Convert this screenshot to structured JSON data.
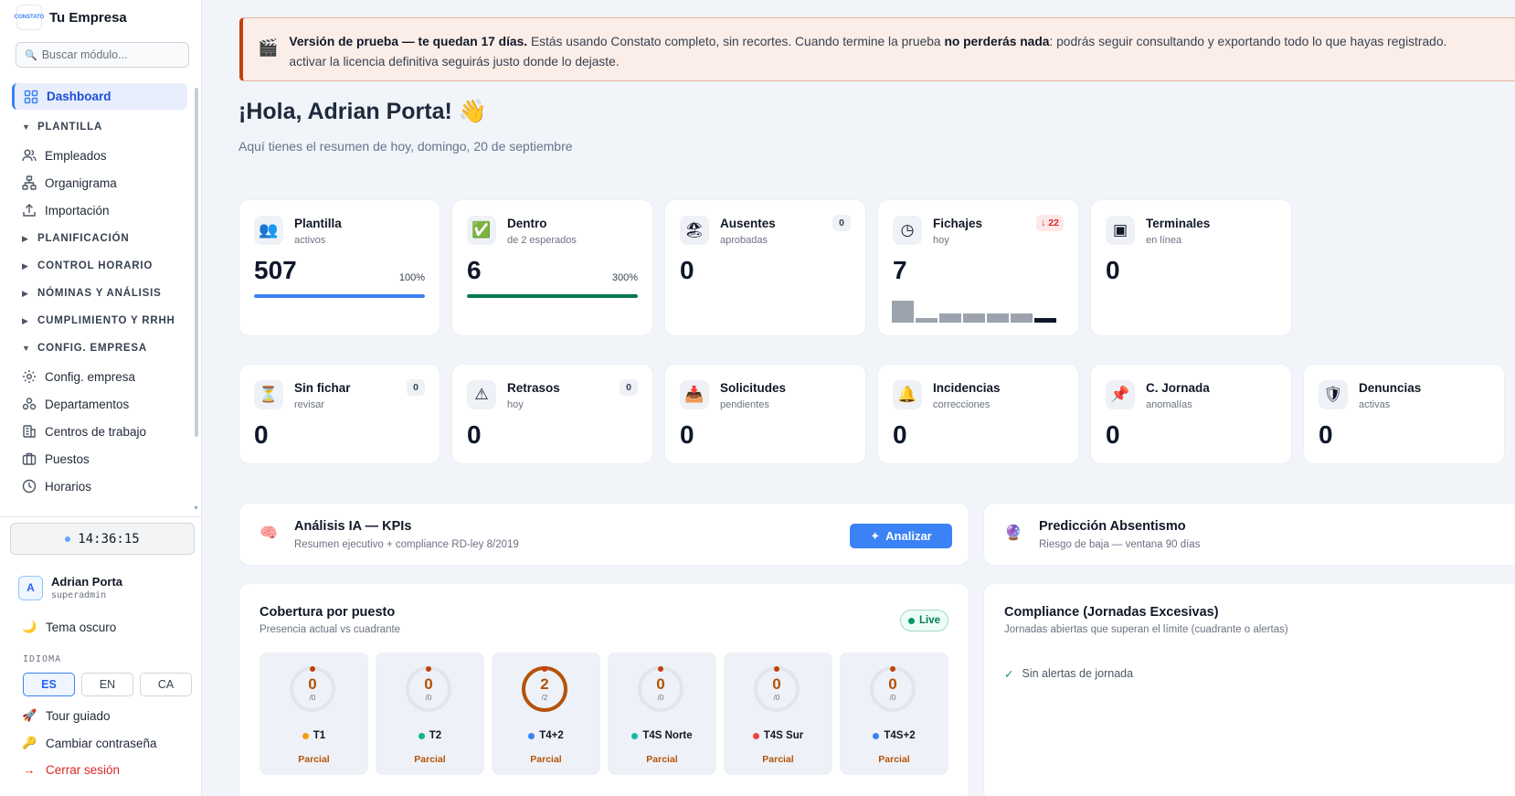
{
  "brand": {
    "name": "Tu Empresa",
    "logo_text": "CONSTATO"
  },
  "search": {
    "placeholder": "Buscar módulo..."
  },
  "nav": {
    "dashboard": "Dashboard",
    "sections": {
      "plantilla": "PLANTILLA",
      "planificacion": "PLANIFICACIÓN",
      "control_horario": "CONTROL HORARIO",
      "nominas": "NÓMINAS Y ANÁLISIS",
      "cumplimiento": "CUMPLIMIENTO Y RRHH",
      "config": "CONFIG. EMPRESA"
    },
    "plantilla_items": [
      "Empleados",
      "Organigrama",
      "Importación"
    ],
    "config_items": [
      "Config. empresa",
      "Departamentos",
      "Centros de trabajo",
      "Puestos",
      "Horarios"
    ]
  },
  "clock": "14:36:15",
  "user": {
    "initial": "A",
    "name": "Adrian Porta",
    "role": "superadmin"
  },
  "sidebar_links": {
    "dark_theme": "Tema oscuro",
    "idioma": "IDIOMA",
    "langs": [
      "ES",
      "EN",
      "CA"
    ],
    "active_lang": "ES",
    "tour": "Tour guiado",
    "change_pwd": "Cambiar contraseña",
    "logout": "Cerrar sesión"
  },
  "banner": {
    "bold1": "Versión de prueba — te quedan 17 días.",
    "text1": " Estás usando Constato completo, sin recortes. Cuando termine la prueba ",
    "bold2": "no perderás nada",
    "text2": ": podrás seguir consultando y exportando todo lo que hayas registrado.",
    "line2": "activar la licencia definitiva seguirás justo donde lo dejaste."
  },
  "greeting": {
    "title": "¡Hola, Adrian Porta! 👋",
    "subtitle": "Aquí tienes el resumen de hoy, domingo, 20 de septiembre"
  },
  "stats_row1": [
    {
      "title": "Plantilla",
      "sub": "activos",
      "value": "507",
      "pct": "100%",
      "icon": "👥",
      "bar_fraction": 1.0,
      "bar_color": "#3b82f6"
    },
    {
      "title": "Dentro",
      "sub": "de 2 esperados",
      "value": "6",
      "pct": "300%",
      "icon": "✅",
      "bar_fraction": 1.0,
      "bar_color": "#047857"
    },
    {
      "title": "Ausentes",
      "sub": "aprobadas",
      "value": "0",
      "badge": "0",
      "icon": "🏖"
    },
    {
      "title": "Fichajes",
      "sub": "hoy",
      "value": "7",
      "badge": "↓ 22",
      "icon": "◷",
      "mini_bars": [
        1.0,
        0.2,
        0.4,
        0.4,
        0.4,
        0.4,
        0.2
      ]
    },
    {
      "title": "Terminales",
      "sub": "en línea",
      "value": "0",
      "icon": "▣"
    }
  ],
  "stats_row2": [
    {
      "title": "Sin fichar",
      "sub": "revisar",
      "value": "0",
      "badge": "0",
      "icon": "⏳"
    },
    {
      "title": "Retrasos",
      "sub": "hoy",
      "value": "0",
      "badge": "0",
      "icon": "⚠"
    },
    {
      "title": "Solicitudes",
      "sub": "pendientes",
      "value": "0",
      "icon": "📥"
    },
    {
      "title": "Incidencias",
      "sub": "correcciones",
      "value": "0",
      "icon": "🔔"
    },
    {
      "title": "C. Jornada",
      "sub": "anomalías",
      "value": "0",
      "icon": "📌"
    },
    {
      "title": "Denuncias",
      "sub": "activas",
      "value": "0",
      "icon": "🛡"
    }
  ],
  "ai_card": {
    "title": "Análisis IA — KPIs",
    "sub": "Resumen ejecutivo + compliance RD-ley 8/2019",
    "button": "Analizar",
    "icon": "🧠"
  },
  "pred_card": {
    "title": "Predicción Absentismo",
    "sub": "Riesgo de baja — ventana 90 días",
    "icon": "🔮"
  },
  "coverage": {
    "title": "Cobertura por puesto",
    "sub": "Presencia actual vs cuadrante",
    "live": "Live",
    "tiles": [
      {
        "num": "0",
        "den": "/0",
        "name": "T1",
        "dot": "#f59e0b",
        "status": "Parcial",
        "full": false
      },
      {
        "num": "0",
        "den": "/0",
        "name": "T2",
        "dot": "#10b981",
        "status": "Parcial",
        "full": false
      },
      {
        "num": "2",
        "den": "/2",
        "name": "T4+2",
        "dot": "#3b82f6",
        "status": "Parcial",
        "full": true
      },
      {
        "num": "0",
        "den": "/0",
        "name": "T4S Norte",
        "dot": "#14b8a6",
        "status": "Parcial",
        "full": false
      },
      {
        "num": "0",
        "den": "/0",
        "name": "T4S Sur",
        "dot": "#ef4444",
        "status": "Parcial",
        "full": false
      },
      {
        "num": "0",
        "den": "/0",
        "name": "T4S+2",
        "dot": "#3b82f6",
        "status": "Parcial",
        "full": false
      }
    ]
  },
  "compliance": {
    "title": "Compliance (Jornadas Excesivas)",
    "sub": "Jornadas abiertas que superan el límite (cuadrante o alertas)",
    "ok": "Sin alertas de jornada"
  }
}
